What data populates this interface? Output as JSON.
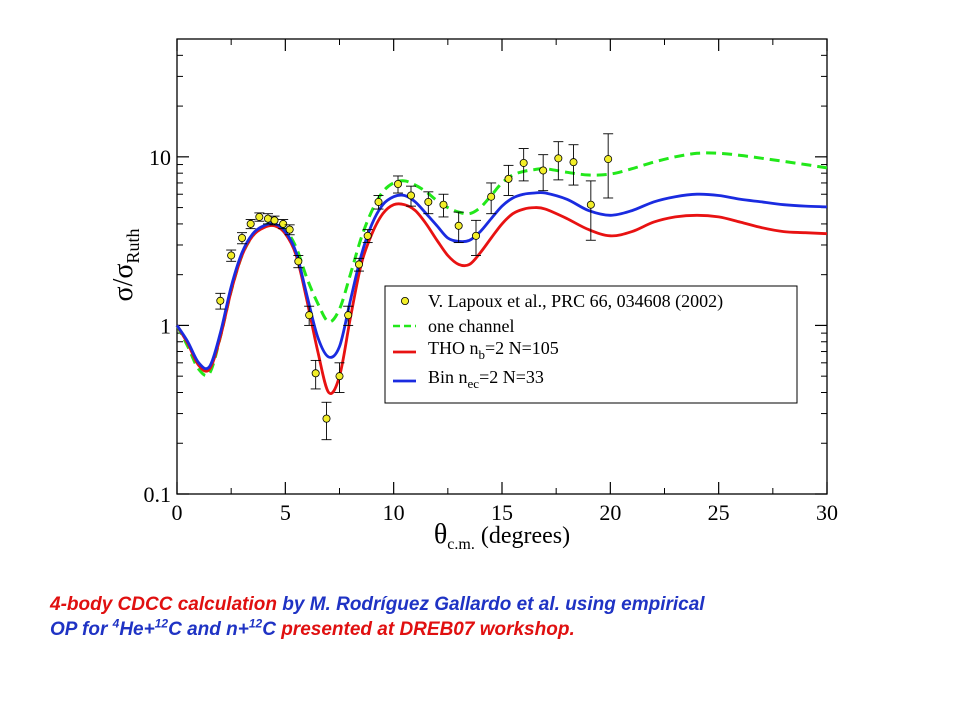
{
  "chart_data": {
    "type": "line",
    "xlim": [
      0,
      30
    ],
    "ylim": [
      0.1,
      50
    ],
    "yscale": "log",
    "x_ticks": [
      "0",
      "5",
      "10",
      "15",
      "20",
      "25",
      "30"
    ],
    "y_ticks": [
      "0.1",
      "1",
      "10"
    ],
    "xlabel": {
      "main": "θ",
      "sub": "c.m.",
      "rest": " (degrees)"
    },
    "ylabel": {
      "main": "σ/σ",
      "sub": "Ruth"
    },
    "legend_position": "right, inside plot",
    "grid": false,
    "series": [
      {
        "name": "V. Lapoux et al., PRC 66, 034608 (2002)",
        "legend": {
          "pre": "V. Lapoux et al., PRC 66, 034608 (2002)",
          "sub": "",
          "post": ""
        },
        "kind": "scatter",
        "color": "#f2ee28",
        "points": [
          [
            2.0,
            1.4,
            0.15,
            0
          ],
          [
            2.5,
            2.6,
            0.2,
            0
          ],
          [
            3.0,
            3.3,
            0.25,
            0.02
          ],
          [
            3.4,
            4.0,
            0.25,
            0.02
          ],
          [
            3.8,
            4.4,
            0.25,
            0.02
          ],
          [
            4.2,
            4.3,
            0.3,
            0.02
          ],
          [
            4.5,
            4.2,
            0.25,
            0.02
          ],
          [
            4.9,
            4.0,
            0.25,
            0.03
          ],
          [
            5.2,
            3.7,
            0.25,
            0.03
          ],
          [
            5.6,
            2.4,
            0.2,
            0.05
          ],
          [
            6.1,
            1.15,
            0.15,
            0.04
          ],
          [
            6.4,
            0.52,
            0.1,
            0.05
          ],
          [
            6.9,
            0.28,
            0.07,
            0.05
          ],
          [
            7.5,
            0.5,
            0.1,
            0.05
          ],
          [
            7.9,
            1.15,
            0.15,
            0.06
          ],
          [
            8.4,
            2.3,
            0.2,
            0.06
          ],
          [
            8.8,
            3.4,
            0.3,
            0.06
          ],
          [
            9.3,
            5.4,
            0.5,
            0.07
          ],
          [
            10.2,
            6.9,
            0.8,
            0.08
          ],
          [
            10.8,
            5.9,
            0.8,
            0.08
          ],
          [
            11.6,
            5.4,
            0.8,
            0.09
          ],
          [
            12.3,
            5.2,
            0.8,
            0.09
          ],
          [
            13.0,
            3.9,
            0.8,
            0.1
          ],
          [
            13.8,
            3.4,
            0.8,
            0.1
          ],
          [
            14.5,
            5.8,
            1.2,
            0.1
          ],
          [
            15.3,
            7.4,
            1.5,
            0.1
          ],
          [
            16.0,
            9.2,
            2.0,
            0.12
          ],
          [
            16.9,
            8.3,
            2.0,
            0.12
          ],
          [
            17.6,
            9.8,
            2.5,
            0.13
          ],
          [
            18.3,
            9.3,
            2.5,
            0.13
          ],
          [
            19.1,
            5.2,
            2.0,
            0.14
          ],
          [
            19.9,
            9.7,
            4.0,
            0.15
          ]
        ]
      },
      {
        "name": "one channel",
        "legend": {
          "pre": "one channel",
          "sub": "",
          "post": ""
        },
        "kind": "line",
        "color": "#22e81a",
        "dash": "10,6",
        "x": [
          0,
          0.5,
          1.0,
          1.5,
          2.0,
          2.5,
          3.0,
          3.5,
          4.0,
          4.5,
          5.0,
          5.5,
          6.0,
          6.5,
          7.0,
          7.5,
          8.0,
          8.5,
          9.0,
          9.5,
          10.0,
          10.5,
          11.0,
          11.5,
          12.0,
          12.5,
          13.0,
          13.5,
          14.0,
          14.5,
          15.0,
          15.5,
          16.0,
          16.5,
          17.0,
          18.0,
          19.0,
          20.0,
          21.0,
          22.0,
          23.0,
          24.0,
          25.0,
          26.0,
          27.0,
          28.0,
          29.0,
          30.0
        ],
        "y": [
          1.0,
          0.75,
          0.55,
          0.52,
          0.85,
          1.6,
          2.6,
          3.4,
          3.9,
          4.0,
          3.7,
          2.9,
          1.9,
          1.35,
          1.05,
          1.25,
          2.0,
          3.3,
          4.8,
          6.2,
          7.0,
          7.2,
          6.8,
          6.2,
          5.5,
          5.0,
          4.7,
          4.6,
          5.0,
          5.9,
          7.0,
          7.8,
          8.2,
          8.4,
          8.5,
          8.1,
          7.8,
          7.9,
          8.5,
          9.3,
          10.0,
          10.5,
          10.5,
          10.2,
          9.8,
          9.4,
          9.0,
          8.6
        ]
      },
      {
        "name": "THO nb=2 N=105",
        "legend": {
          "pre": "THO n",
          "sub": "b",
          "post": "=2 N=105"
        },
        "kind": "line",
        "color": "#e81212",
        "dash": "",
        "x": [
          0,
          0.5,
          1.0,
          1.5,
          2.0,
          2.5,
          3.0,
          3.5,
          4.0,
          4.5,
          5.0,
          5.5,
          6.0,
          6.5,
          7.0,
          7.5,
          8.0,
          8.5,
          9.0,
          9.5,
          10.0,
          10.5,
          11.0,
          11.5,
          12.0,
          12.5,
          13.0,
          13.5,
          14.0,
          14.5,
          15.0,
          15.5,
          16.0,
          16.5,
          17.0,
          18.0,
          19.0,
          20.0,
          21.0,
          22.0,
          23.0,
          24.0,
          25.0,
          26.0,
          27.0,
          28.0,
          29.0,
          30.0
        ],
        "y": [
          1.0,
          0.78,
          0.58,
          0.55,
          0.85,
          1.6,
          2.6,
          3.4,
          3.8,
          3.9,
          3.5,
          2.6,
          1.4,
          0.7,
          0.4,
          0.5,
          1.1,
          2.3,
          3.5,
          4.6,
          5.2,
          5.2,
          4.8,
          4.0,
          3.2,
          2.6,
          2.3,
          2.3,
          2.7,
          3.3,
          4.0,
          4.6,
          4.9,
          5.0,
          4.9,
          4.3,
          3.7,
          3.4,
          3.6,
          4.1,
          4.4,
          4.5,
          4.4,
          4.1,
          3.8,
          3.6,
          3.55,
          3.5
        ]
      },
      {
        "name": "Bin nec=2 N=33",
        "legend": {
          "pre": "Bin n",
          "sub": "ec",
          "post": "=2 N=33"
        },
        "kind": "line",
        "color": "#1a2be0",
        "dash": "",
        "x": [
          0,
          0.5,
          1.0,
          1.5,
          2.0,
          2.5,
          3.0,
          3.5,
          4.0,
          4.5,
          5.0,
          5.5,
          6.0,
          6.5,
          7.0,
          7.5,
          8.0,
          8.5,
          9.0,
          9.5,
          10.0,
          10.5,
          11.0,
          11.5,
          12.0,
          12.5,
          13.0,
          13.5,
          14.0,
          14.5,
          15.0,
          15.5,
          16.0,
          16.5,
          17.0,
          18.0,
          19.0,
          20.0,
          21.0,
          22.0,
          23.0,
          24.0,
          25.0,
          26.0,
          27.0,
          28.0,
          29.0,
          30.0
        ],
        "y": [
          1.0,
          0.8,
          0.6,
          0.57,
          0.9,
          1.7,
          2.7,
          3.5,
          3.9,
          4.0,
          3.6,
          2.7,
          1.5,
          0.85,
          0.65,
          0.75,
          1.4,
          2.6,
          4.0,
          5.2,
          5.8,
          5.9,
          5.4,
          4.6,
          3.9,
          3.3,
          3.15,
          3.2,
          3.6,
          4.3,
          5.1,
          5.7,
          6.0,
          6.1,
          6.1,
          5.6,
          4.8,
          4.5,
          4.8,
          5.4,
          5.8,
          6.0,
          5.9,
          5.6,
          5.4,
          5.2,
          5.1,
          5.05
        ]
      }
    ]
  },
  "caption": {
    "line1_red": "4-body CDCC calculation",
    "line1_blue": " by M. Rodríguez Gallardo et al. using empirical",
    "line2_a": "OP for ",
    "line2_sup1": "4",
    "line2_b": "He+",
    "line2_sup2": "12",
    "line2_c": "C and n+",
    "line2_sup3": "12",
    "line2_d": "C ",
    "line2_red": "presented at DREB07 workshop."
  }
}
